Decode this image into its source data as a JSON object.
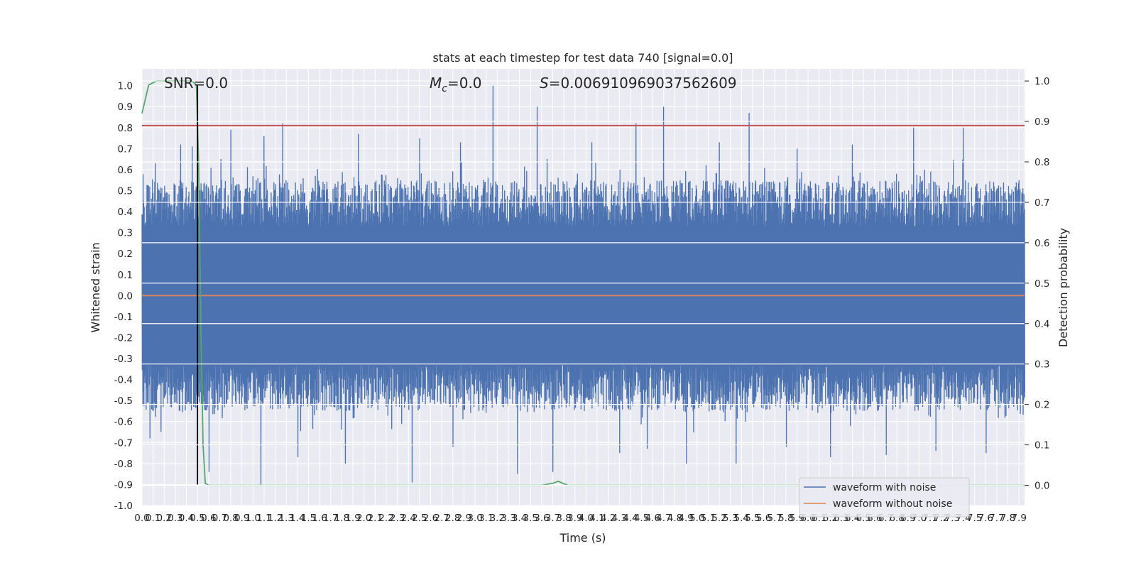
{
  "chart_data": {
    "type": "line",
    "title": "stats at each timestep for test data 740 [signal=0.0]",
    "xlabel": "Time (s)",
    "ylabel": "Whitened strain",
    "y2label": "Detection probability",
    "xlim": [
      0.0,
      7.95
    ],
    "ylim": [
      -1.0,
      1.08
    ],
    "y2lim": [
      -0.05,
      1.03
    ],
    "grid": true,
    "legend_position": "lower-right",
    "x_ticks": [
      "0.0",
      "0.1",
      "0.2",
      "0.3",
      "0.4",
      "0.5",
      "0.6",
      "0.7",
      "0.8",
      "0.9",
      "1.0",
      "1.1",
      "1.2",
      "1.3",
      "1.4",
      "1.5",
      "1.6",
      "1.7",
      "1.8",
      "1.9",
      "2.0",
      "2.1",
      "2.2",
      "2.3",
      "2.4",
      "2.5",
      "2.6",
      "2.7",
      "2.8",
      "2.9",
      "3.0",
      "3.1",
      "3.2",
      "3.3",
      "3.4",
      "3.5",
      "3.6",
      "3.7",
      "3.8",
      "3.9",
      "4.0",
      "4.1",
      "4.2",
      "4.3",
      "4.4",
      "4.5",
      "4.6",
      "4.7",
      "4.8",
      "4.9",
      "5.0",
      "5.1",
      "5.2",
      "5.3",
      "5.4",
      "5.5",
      "5.6",
      "5.7",
      "5.8",
      "5.9",
      "6.0",
      "6.1",
      "6.2",
      "6.3",
      "6.4",
      "6.5",
      "6.6",
      "6.7",
      "6.8",
      "6.9",
      "7.0",
      "7.1",
      "7.2",
      "7.3",
      "7.4",
      "7.5",
      "7.6",
      "7.7",
      "7.8",
      "7.9"
    ],
    "y_ticks": [
      "-1.0",
      "-0.9",
      "-0.8",
      "-0.7",
      "-0.6",
      "-0.5",
      "-0.4",
      "-0.3",
      "-0.2",
      "-0.1",
      "0.0",
      "0.1",
      "0.2",
      "0.3",
      "0.4",
      "0.5",
      "0.6",
      "0.7",
      "0.8",
      "0.9",
      "1.0"
    ],
    "y2_ticks": [
      "0.0",
      "0.1",
      "0.2",
      "0.3",
      "0.4",
      "0.5",
      "0.6",
      "0.7",
      "0.8",
      "0.9",
      "1.0"
    ],
    "annotations": {
      "snr": "SNR=0.0",
      "mc_symbol": "M",
      "mc_sub": "c",
      "mc_value": "=0.0",
      "s_symbol": "S",
      "s_value": "=0.006910969037562609"
    },
    "series": [
      {
        "name": "waveform with noise",
        "color": "#4c72b0",
        "axis": "left",
        "peaks": [
          [
            3.16,
            1.0
          ],
          [
            3.56,
            0.9
          ],
          [
            4.7,
            0.9
          ],
          [
            5.47,
            0.87
          ],
          [
            1.27,
            0.82
          ],
          [
            4.45,
            0.82
          ],
          [
            0.12,
            0.63
          ],
          [
            0.35,
            0.72
          ],
          [
            0.45,
            0.71
          ],
          [
            0.8,
            0.79
          ],
          [
            1.1,
            0.76
          ],
          [
            1.95,
            0.77
          ],
          [
            2.5,
            0.75
          ],
          [
            2.87,
            0.73
          ],
          [
            4.05,
            0.73
          ],
          [
            5.2,
            0.73
          ],
          [
            5.9,
            0.7
          ],
          [
            6.4,
            0.72
          ],
          [
            6.95,
            0.8
          ],
          [
            7.4,
            0.8
          ],
          [
            7.9,
            0.55
          ]
        ],
        "troughs": [
          [
            1.07,
            -0.9
          ],
          [
            2.43,
            -0.89
          ],
          [
            3.38,
            -0.85
          ],
          [
            3.7,
            -0.84
          ],
          [
            4.55,
            -0.73
          ],
          [
            4.9,
            -0.8
          ],
          [
            5.35,
            -0.8
          ],
          [
            0.07,
            -0.68
          ],
          [
            0.6,
            -0.84
          ],
          [
            1.4,
            -0.77
          ],
          [
            1.83,
            -0.8
          ],
          [
            2.8,
            -0.72
          ],
          [
            4.3,
            -0.75
          ],
          [
            5.8,
            -0.72
          ],
          [
            6.2,
            -0.77
          ],
          [
            6.7,
            -0.76
          ],
          [
            7.15,
            -0.74
          ],
          [
            7.6,
            -0.75
          ]
        ]
      },
      {
        "name": "waveform without noise",
        "color": "#dd8452",
        "axis": "left",
        "x": [
          0.0,
          7.95
        ],
        "y": [
          0.0,
          0.0
        ]
      },
      {
        "color": "#55a868",
        "axis": "right",
        "x": [
          0.0,
          0.06,
          0.13,
          0.2,
          0.3,
          0.4,
          0.45,
          0.49,
          0.51,
          0.53,
          0.55,
          0.57,
          0.6,
          1.0,
          2.0,
          3.0,
          3.6,
          3.7,
          3.75,
          3.79,
          3.84,
          4.0,
          5.0,
          6.0,
          7.0,
          7.95
        ],
        "y": [
          0.92,
          0.99,
          1.0,
          1.0,
          1.0,
          1.0,
          1.0,
          0.99,
          0.8,
          0.4,
          0.1,
          0.005,
          0.0,
          0.0,
          0.0,
          0.0,
          0.0,
          0.005,
          0.01,
          0.005,
          0.0,
          0.0,
          0.0,
          0.0,
          0.0,
          0.0
        ]
      },
      {
        "color": "#c44e52",
        "axis": "left",
        "x": [
          0.0,
          7.95
        ],
        "y": [
          0.81,
          0.81
        ]
      }
    ],
    "vertical_marker": {
      "x": 0.5,
      "y_from": -0.9,
      "y_to": 1.0,
      "color": "#000000"
    }
  }
}
